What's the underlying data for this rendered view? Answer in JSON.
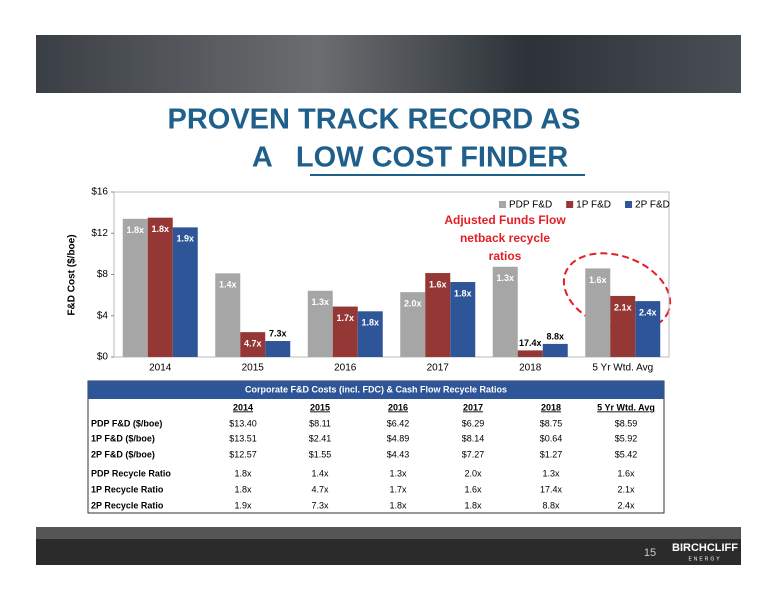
{
  "title_lines": [
    "PROVEN TRACK RECORD AS",
    "A   LOW COST FINDER"
  ],
  "chart_data": {
    "type": "bar",
    "y_label": "F&D Cost ($/boe)",
    "categories": [
      "2014",
      "2015",
      "2016",
      "2017",
      "2018",
      "5 Yr Wtd. Avg"
    ],
    "series": [
      {
        "name": "PDP F&D",
        "color": "#a6a6a6",
        "values": [
          13.4,
          8.11,
          6.42,
          6.29,
          8.75,
          8.59
        ]
      },
      {
        "name": "1P F&D",
        "color": "#953735",
        "values": [
          13.51,
          2.41,
          4.89,
          8.14,
          0.64,
          5.92
        ]
      },
      {
        "name": "2P F&D",
        "color": "#2e5597",
        "values": [
          12.57,
          1.55,
          4.43,
          7.27,
          1.27,
          5.42
        ]
      }
    ],
    "ylim": [
      0,
      16
    ],
    "yticks": [
      {
        "value": 0,
        "label": "$0"
      },
      {
        "value": 4,
        "label": "$4"
      },
      {
        "value": 8,
        "label": "$8"
      },
      {
        "value": 12,
        "label": "$12"
      },
      {
        "value": 16,
        "label": "$16"
      }
    ],
    "grid": false,
    "legend": "top-right",
    "annotation": [
      "Adjusted Funds Flow",
      "netback recycle",
      "ratios"
    ],
    "annotation_color": "#e31e24"
  },
  "table": {
    "title": "Corporate F&D Costs (incl. FDC) & Cash Flow Recycle Ratios",
    "header": [
      "2014",
      "2015",
      "2016",
      "2017",
      "2018",
      "5 Yr Wtd. Avg"
    ],
    "rows": [
      [
        "PDP F&D ($/boe)",
        "$13.40",
        "$8.11",
        "$6.42",
        "$6.29",
        "$8.75",
        "$8.59"
      ],
      [
        "1P F&D ($/boe)",
        "$13.51",
        "$2.41",
        "$4.89",
        "$8.14",
        "$0.64",
        "$5.92"
      ],
      [
        "2P F&D ($/boe)",
        "$12.57",
        "$1.55",
        "$4.43",
        "$7.27",
        "$1.27",
        "$5.42"
      ],
      [
        "PDP Recycle Ratio",
        "1.8x",
        "1.4x",
        "1.3x",
        "2.0x",
        "1.3x",
        "1.6x"
      ],
      [
        "1P Recycle Ratio",
        "1.8x",
        "4.7x",
        "1.7x",
        "1.6x",
        "17.4x",
        "2.1x"
      ],
      [
        "2P Recycle Ratio",
        "1.9x",
        "7.3x",
        "1.8x",
        "1.8x",
        "8.8x",
        "2.4x"
      ]
    ]
  },
  "footer": {
    "page": "15",
    "logo": "BIRCHCLIFF",
    "logo_sub": "ENERGY"
  }
}
